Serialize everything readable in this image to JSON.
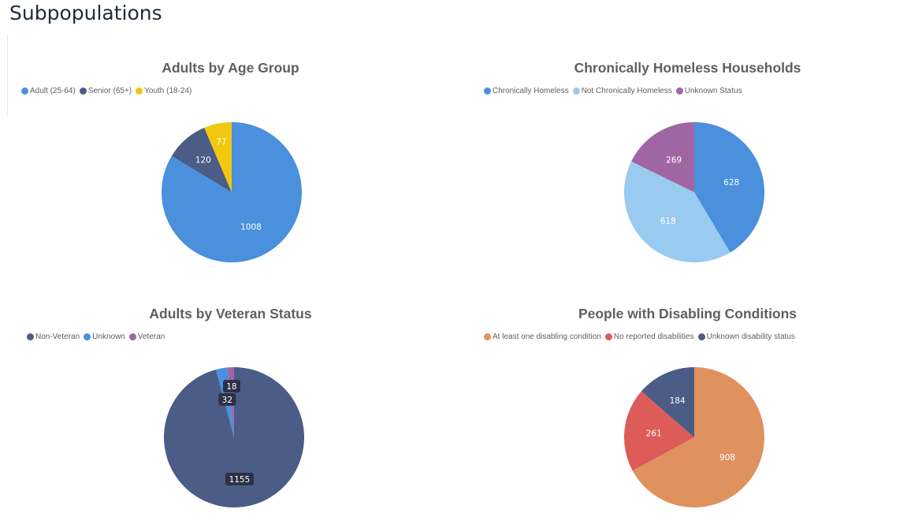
{
  "page": {
    "title": "Subpopulations"
  },
  "chart_data": [
    {
      "type": "pie",
      "title": "Adults by Age Group",
      "labels": [
        "Adult (25-64)",
        "Senior (65+)",
        "Youth (18-24)"
      ],
      "values": [
        1008,
        120,
        77
      ],
      "colors": [
        "#4a90dc",
        "#4b5c86",
        "#f2c80f"
      ],
      "data_labels": [
        "1008",
        "120",
        "77"
      ],
      "label_color": "#ffffff",
      "label_boxed": false,
      "legend": "top-left"
    },
    {
      "type": "pie",
      "title": "Chronically Homeless Households",
      "labels": [
        "Chronically Homeless",
        "Not Chronically Homeless",
        "Unknown Status"
      ],
      "values": [
        628,
        618,
        269
      ],
      "colors": [
        "#4a90dc",
        "#99caf0",
        "#a066a4"
      ],
      "data_labels": [
        "628",
        "618",
        "269"
      ],
      "label_color": "#ffffff",
      "label_boxed": false,
      "legend": "top-left"
    },
    {
      "type": "pie",
      "title": "Adults by Veteran Status",
      "labels": [
        "Non-Veteran",
        "Unknown",
        "Veteran"
      ],
      "values": [
        1155,
        32,
        18
      ],
      "colors": [
        "#4b5c86",
        "#4a90dc",
        "#a066a4"
      ],
      "data_labels": [
        "1155",
        "32",
        "18"
      ],
      "label_color": "#ffffff",
      "label_boxed": true,
      "legend": "top-left"
    },
    {
      "type": "pie",
      "title": "People with Disabling Conditions",
      "labels": [
        "At least one disabling condition",
        "No reported disabilities",
        "Unknown disability status"
      ],
      "values": [
        908,
        261,
        184
      ],
      "colors": [
        "#df915e",
        "#dd5b58",
        "#4b5c86"
      ],
      "data_labels": [
        "908",
        "261",
        "184"
      ],
      "label_color": "#ffffff",
      "label_boxed": false,
      "legend": "top-left"
    }
  ]
}
